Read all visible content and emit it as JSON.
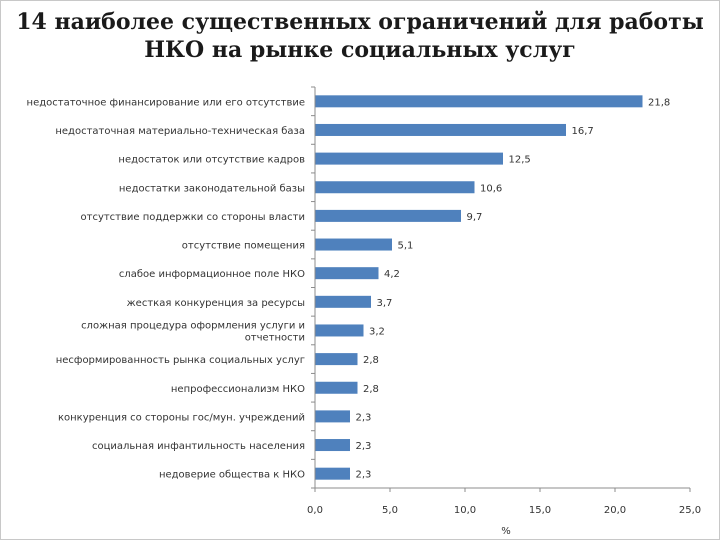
{
  "chart_data": {
    "type": "bar",
    "orientation": "horizontal",
    "title": [
      "14 наиболее существенных ограничений для работы",
      "НКО на рынке социальных услуг"
    ],
    "xlabel": "%",
    "xlim": [
      0,
      25
    ],
    "xticks": [
      "0,0",
      "5,0",
      "10,0",
      "15,0",
      "20,0",
      "25,0"
    ],
    "categories": [
      [
        "недостаточное финансирование или его отсутствие"
      ],
      [
        "недостаточная материально-техническая база"
      ],
      [
        "недостаток или отсутствие кадров"
      ],
      [
        "недостатки законодательной базы"
      ],
      [
        "отсутствие поддержки со стороны власти"
      ],
      [
        "отсутствие помещения"
      ],
      [
        "слабое информационное поле НКО"
      ],
      [
        "жесткая конкуренция за ресурсы"
      ],
      [
        "сложная процедура оформления услуги и",
        "отчетности"
      ],
      [
        "несформированность рынка социальных услуг"
      ],
      [
        "непрофессионализм НКО"
      ],
      [
        "конкуренция со стороны гос/мун. учреждений"
      ],
      [
        "социальная инфантильность населения"
      ],
      [
        "недоверие общества к НКО"
      ]
    ],
    "values": [
      21.8,
      16.7,
      12.5,
      10.6,
      9.7,
      5.1,
      4.2,
      3.7,
      3.2,
      2.8,
      2.8,
      2.3,
      2.3,
      2.3
    ],
    "value_labels": [
      "21,8",
      "16,7",
      "12,5",
      "10,6",
      "9,7",
      "5,1",
      "4,2",
      "3,7",
      "3,2",
      "2,8",
      "2,8",
      "2,3",
      "2,3",
      "2,3"
    ],
    "bar_color": "#4f81bd",
    "grid": false,
    "legend": "none"
  }
}
